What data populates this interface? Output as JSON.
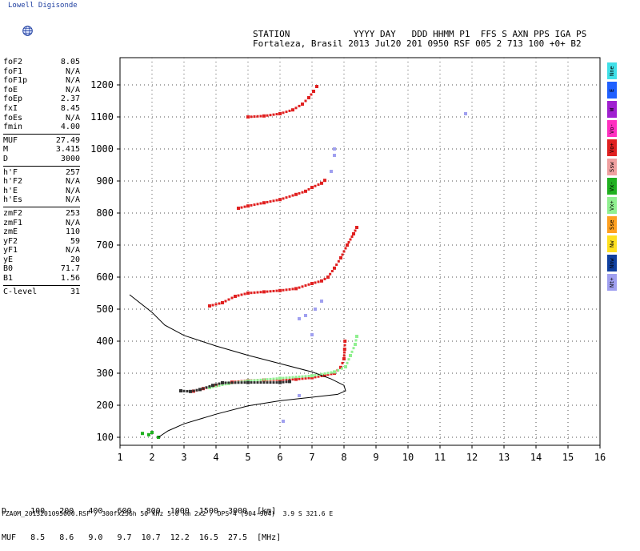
{
  "app": {
    "brand": "Lowell Digisonde"
  },
  "header": {
    "line1": "STATION            YYYY DAY   DDD HHMM P1  FFS S AXN PPS IGA PS",
    "line2": "Fortaleza, Brasil 2013 Jul20 201 0950 RSF 005 2 713 100 +0+ B2"
  },
  "params": {
    "group1": [
      {
        "k": "foF2",
        "v": "8.05"
      },
      {
        "k": "foF1",
        "v": "N/A"
      },
      {
        "k": "foF1p",
        "v": "N/A"
      },
      {
        "k": "foE",
        "v": "N/A"
      },
      {
        "k": "foEp",
        "v": "2.37"
      },
      {
        "k": "fxI",
        "v": "8.45"
      },
      {
        "k": "foEs",
        "v": "N/A"
      },
      {
        "k": "fmin",
        "v": "4.00"
      }
    ],
    "group2": [
      {
        "k": "MUF",
        "v": "27.49"
      },
      {
        "k": "M",
        "v": "3.415"
      },
      {
        "k": "D",
        "v": "3000"
      }
    ],
    "group3": [
      {
        "k": "h'F",
        "v": "257"
      },
      {
        "k": "h'F2",
        "v": "N/A"
      },
      {
        "k": "h'E",
        "v": "N/A"
      },
      {
        "k": "h'Es",
        "v": "N/A"
      }
    ],
    "group4": [
      {
        "k": "zmF2",
        "v": "253"
      },
      {
        "k": "zmF1",
        "v": "N/A"
      },
      {
        "k": "zmE",
        "v": "110"
      },
      {
        "k": "yF2",
        "v": "59"
      },
      {
        "k": "yF1",
        "v": "N/A"
      },
      {
        "k": "yE",
        "v": "20"
      },
      {
        "k": "B0",
        "v": "71.7"
      },
      {
        "k": "B1",
        "v": "1.56"
      }
    ],
    "group5": [
      {
        "k": "C-level",
        "v": "31"
      }
    ]
  },
  "legend": [
    {
      "label": "Nne",
      "color": "#40e0e8"
    },
    {
      "label": "E",
      "color": "#2060ff"
    },
    {
      "label": "W",
      "color": "#a020d0"
    },
    {
      "label": "Vo-",
      "color": "#ff30c0"
    },
    {
      "label": "Vo+",
      "color": "#e02020"
    },
    {
      "label": "Ssw",
      "color": "#f0a0a0"
    },
    {
      "label": "Vx-",
      "color": "#20b020"
    },
    {
      "label": "Vx+",
      "color": "#90f090"
    },
    {
      "label": "Sse",
      "color": "#ffa020"
    },
    {
      "label": "Nw",
      "color": "#ffe020"
    },
    {
      "label": "Nnw",
      "color": "#1040a0"
    },
    {
      "label": "Nt+",
      "color": "#a0a0f0"
    }
  ],
  "muf_table": {
    "line1": "D     100   200   400   600   800  1000  1500  3000  [km]",
    "line2": "MUF   8.5   8.6   9.0   9.7  10.7  12.2  16.5  27.5  [MHz]"
  },
  "footer": "FZA0M_2013201095000.RSF / 300fx256h 50 kHz 5.0 km 2x2 / DPS-4 (904-904)  3.9 S 321.6 E",
  "chart_data": {
    "type": "scatter",
    "x_ticks": [
      "1",
      "2",
      "3",
      "4",
      "5",
      "6",
      "7",
      "8",
      "9",
      "10",
      "11",
      "12",
      "13",
      "14",
      "15",
      "16"
    ],
    "y_ticks": [
      "100",
      "200",
      "300",
      "400",
      "500",
      "600",
      "700",
      "800",
      "900",
      "1000",
      "1100",
      "1200"
    ],
    "xlim": [
      1,
      16
    ],
    "ylim": [
      75,
      1285
    ],
    "grid": true,
    "series": [
      {
        "color": "#e02020",
        "points": [
          [
            3.3,
            244
          ],
          [
            3.6,
            252
          ],
          [
            4.0,
            262
          ],
          [
            4.5,
            272
          ],
          [
            5.0,
            277
          ],
          [
            5.5,
            279
          ],
          [
            6.0,
            280
          ],
          [
            6.5,
            281
          ],
          [
            7.0,
            286
          ],
          [
            7.4,
            293
          ],
          [
            7.7,
            300
          ],
          [
            7.9,
            318
          ],
          [
            8.0,
            345
          ],
          [
            8.02,
            375
          ],
          [
            8.03,
            400
          ]
        ]
      },
      {
        "color": "#90f090",
        "points": [
          [
            3.8,
            255
          ],
          [
            4.4,
            268
          ],
          [
            5.0,
            276
          ],
          [
            6.0,
            284
          ],
          [
            7.0,
            292
          ],
          [
            7.7,
            304
          ],
          [
            8.05,
            320
          ],
          [
            8.2,
            355
          ],
          [
            8.35,
            390
          ],
          [
            8.4,
            415
          ]
        ]
      },
      {
        "color": "#e02020",
        "points": [
          [
            3.8,
            510
          ],
          [
            4.2,
            520
          ],
          [
            4.6,
            540
          ],
          [
            5.0,
            550
          ],
          [
            5.5,
            554
          ],
          [
            6.0,
            558
          ],
          [
            6.5,
            564
          ],
          [
            7.0,
            580
          ],
          [
            7.3,
            588
          ],
          [
            7.5,
            600
          ],
          [
            7.7,
            628
          ],
          [
            7.9,
            660
          ],
          [
            8.1,
            700
          ],
          [
            8.3,
            735
          ],
          [
            8.4,
            755
          ]
        ]
      },
      {
        "color": "#e02020",
        "points": [
          [
            4.7,
            815
          ],
          [
            5.0,
            822
          ],
          [
            5.5,
            832
          ],
          [
            6.0,
            842
          ],
          [
            6.5,
            858
          ],
          [
            6.8,
            868
          ],
          [
            7.0,
            880
          ],
          [
            7.3,
            893
          ],
          [
            7.4,
            902
          ]
        ]
      },
      {
        "color": "#e02020",
        "points": [
          [
            5.0,
            1100
          ],
          [
            5.5,
            1103
          ],
          [
            6.0,
            1110
          ],
          [
            6.4,
            1122
          ],
          [
            6.7,
            1140
          ],
          [
            6.9,
            1160
          ],
          [
            7.05,
            1180
          ],
          [
            7.15,
            1195
          ]
        ]
      },
      {
        "color": "#303030",
        "points": [
          [
            2.9,
            245
          ],
          [
            3.2,
            243
          ],
          [
            3.5,
            249
          ],
          [
            3.9,
            262
          ],
          [
            4.2,
            270
          ],
          [
            5.0,
            271
          ],
          [
            6.0,
            271
          ],
          [
            6.3,
            274
          ]
        ]
      },
      {
        "color": "#a0a0f0",
        "points": [
          [
            6.6,
            470
          ],
          [
            6.8,
            480
          ],
          [
            7.1,
            500
          ],
          [
            7.3,
            525
          ],
          [
            7.0,
            420
          ],
          [
            6.1,
            150
          ],
          [
            6.6,
            230
          ],
          [
            7.7,
            1000
          ],
          [
            7.7,
            980
          ],
          [
            7.6,
            930
          ],
          [
            11.8,
            1110
          ]
        ]
      },
      {
        "color": "#20b020",
        "points": [
          [
            1.7,
            112
          ],
          [
            1.9,
            108
          ],
          [
            2.0,
            115
          ],
          [
            2.2,
            100
          ]
        ]
      }
    ],
    "profile": {
      "color": "#000000",
      "points": [
        [
          2.2,
          100
        ],
        [
          2.5,
          120
        ],
        [
          3.0,
          142
        ],
        [
          4.0,
          172
        ],
        [
          5.0,
          198
        ],
        [
          6.0,
          214
        ],
        [
          7.0,
          225
        ],
        [
          7.8,
          234
        ],
        [
          8.05,
          245
        ],
        [
          8.0,
          262
        ],
        [
          7.6,
          282
        ],
        [
          7.0,
          304
        ],
        [
          6.0,
          330
        ],
        [
          5.0,
          356
        ],
        [
          4.0,
          385
        ],
        [
          3.0,
          418
        ],
        [
          2.4,
          450
        ],
        [
          2.0,
          490
        ],
        [
          1.3,
          545
        ]
      ]
    }
  }
}
